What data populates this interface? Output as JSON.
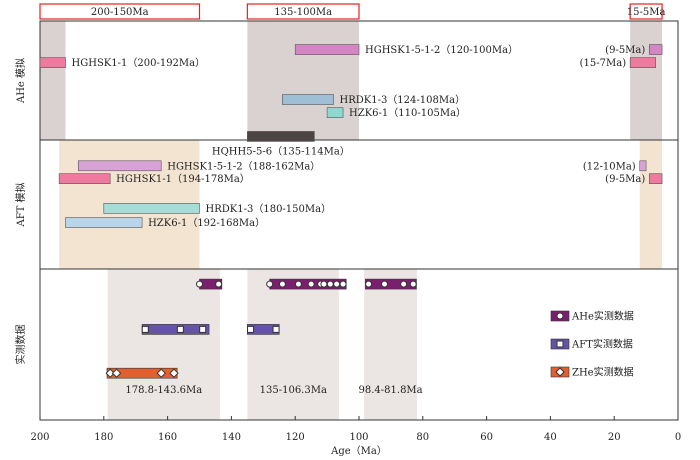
{
  "chart_data": {
    "type": "timeline",
    "xlabel": "Age（Ma）",
    "xlim": [
      200,
      0
    ],
    "xticks": [
      200,
      180,
      160,
      140,
      120,
      100,
      80,
      60,
      40,
      20,
      0
    ],
    "panels": [
      "AHe 模拟",
      "AFT 模拟",
      "实测数据"
    ],
    "periods": [
      {
        "label": "200-150Ma",
        "from": 200,
        "to": 150
      },
      {
        "label": "135-100Ma",
        "from": 135,
        "to": 100
      },
      {
        "label": "15-5Ma",
        "from": 15,
        "to": 5
      }
    ],
    "shaded": [
      {
        "panel": 0,
        "from": 200,
        "to": 192,
        "style": "ahe"
      },
      {
        "panel": 0,
        "from": 135,
        "to": 100,
        "style": "ahe"
      },
      {
        "panel": 0,
        "from": 15,
        "to": 5,
        "style": "ahe"
      },
      {
        "panel": 1,
        "from": 194,
        "to": 150,
        "style": "aft"
      },
      {
        "panel": 1,
        "from": 12,
        "to": 5,
        "style": "aft"
      },
      {
        "panel": 2,
        "from": 178.8,
        "to": 143.6,
        "style": "obs"
      },
      {
        "panel": 2,
        "from": 135,
        "to": 106.3,
        "style": "obs"
      },
      {
        "panel": 2,
        "from": 98.4,
        "to": 81.8,
        "style": "obs"
      }
    ],
    "models": [
      {
        "panel": 0,
        "label": "HGHSK1-1（200-192Ma）",
        "from": 200,
        "to": 192,
        "color": "#ef7aa0",
        "side": "right",
        "row": 0.35
      },
      {
        "panel": 0,
        "label": "HGHSK1-5-1-2（120-100Ma）",
        "from": 120,
        "to": 100,
        "color": "#d486c4",
        "side": "right",
        "row": 0.24
      },
      {
        "panel": 0,
        "label": "(9-5Ma)",
        "from": 9,
        "to": 5,
        "color": "#d486c4",
        "side": "left",
        "row": 0.24
      },
      {
        "panel": 0,
        "label": "(15-7Ma)",
        "from": 15,
        "to": 7,
        "color": "#ef7aa0",
        "side": "left",
        "row": 0.35
      },
      {
        "panel": 0,
        "label": "HRDK1-3（124-108Ma）",
        "from": 124,
        "to": 108,
        "color": "#9fbfd6",
        "side": "right",
        "row": 0.66
      },
      {
        "panel": 0,
        "label": "HZK6-1（110-105Ma）",
        "from": 110,
        "to": 105,
        "color": "#8fd8d0",
        "side": "right",
        "row": 0.77
      },
      {
        "panel": 0,
        "label": "HQHH5-5-6（135-114Ma）",
        "from": 135,
        "to": 114,
        "color": "#4d4444",
        "side": "below",
        "row": 0.97
      },
      {
        "panel": 1,
        "label": "HGHSK1-5-1-2（188-162Ma）",
        "from": 188,
        "to": 162,
        "color": "#d9a2d6",
        "side": "right",
        "row": 0.2
      },
      {
        "panel": 1,
        "label": "HGHSK1-1（194-178Ma）",
        "from": 194,
        "to": 178,
        "color": "#ef7aa0",
        "side": "right",
        "row": 0.3
      },
      {
        "panel": 1,
        "label": "(12-10Ma)",
        "from": 12,
        "to": 10,
        "color": "#d9a2d6",
        "side": "left",
        "row": 0.2
      },
      {
        "panel": 1,
        "label": "(9-5Ma)",
        "from": 9,
        "to": 5,
        "color": "#ef7aa0",
        "side": "left",
        "row": 0.3
      },
      {
        "panel": 1,
        "label": "HRDK1-3（180-150Ma）",
        "from": 180,
        "to": 150,
        "color": "#a8dcd6",
        "side": "right",
        "row": 0.53
      },
      {
        "panel": 1,
        "label": "HZK6-1（192-168Ma）",
        "from": 192,
        "to": 168,
        "color": "#b8d5ea",
        "side": "right",
        "row": 0.64
      }
    ],
    "observed": [
      {
        "name": "AHe实测数据",
        "color": "#7a1f6e",
        "marker": "circle",
        "bars": [
          {
            "from": 150,
            "to": 143
          },
          {
            "from": 128,
            "to": 104
          },
          {
            "from": 98,
            "to": 82
          }
        ],
        "points": [
          150,
          144,
          128,
          124,
          119,
          115,
          112,
          111,
          109,
          107,
          105,
          97,
          92,
          86,
          83
        ],
        "row": 0.1
      },
      {
        "name": "AFT实测数据",
        "color": "#6553a6",
        "marker": "square",
        "bars": [
          {
            "from": 168,
            "to": 147
          },
          {
            "from": 135,
            "to": 125
          }
        ],
        "points": [
          167,
          156,
          149,
          134,
          126
        ],
        "row": 0.4
      },
      {
        "name": "ZHe实测数据",
        "color": "#e2602f",
        "marker": "diamond",
        "bars": [
          {
            "from": 179,
            "to": 157
          }
        ],
        "points": [
          178,
          176,
          162,
          158
        ],
        "row": 0.69
      }
    ],
    "range_labels": [
      {
        "text": "178.8-143.6Ma",
        "at": 161.2
      },
      {
        "text": "135-106.3Ma",
        "at": 120.6
      },
      {
        "text": "98.4-81.8Ma",
        "at": 90.1
      }
    ]
  }
}
